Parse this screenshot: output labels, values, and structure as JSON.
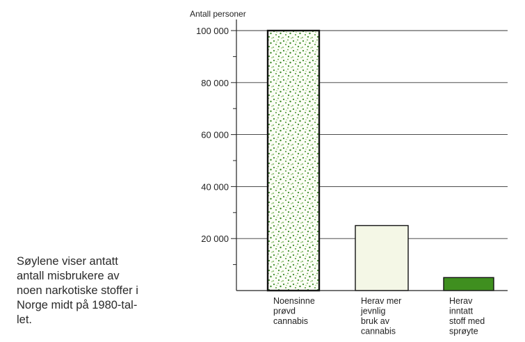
{
  "caption": "Søylene viser antatt\nantall misbrukere av\nnoen narkotiske stoffer i\nNorge midt på 1980-tal-\nlet.",
  "chart_data": {
    "type": "bar",
    "ylabel": "Antall personer",
    "ylim": [
      0,
      100000
    ],
    "yticks": [
      20000,
      40000,
      60000,
      80000,
      100000
    ],
    "ytick_labels": [
      "20 000",
      "40 000",
      "60 000",
      "80 000",
      "100 000"
    ],
    "grid": true,
    "categories": [
      [
        "Noensinne",
        "prøvd",
        "cannabis"
      ],
      [
        "Herav mer",
        "jevnlig",
        "bruk av",
        "cannabis"
      ],
      [
        "Herav",
        "inntatt",
        "stoff med",
        "sprøyte"
      ]
    ],
    "values": [
      100000,
      25000,
      5000
    ],
    "bar_fills": [
      "speckled-green",
      "#f4f7e6",
      "#3f8f1f"
    ]
  }
}
